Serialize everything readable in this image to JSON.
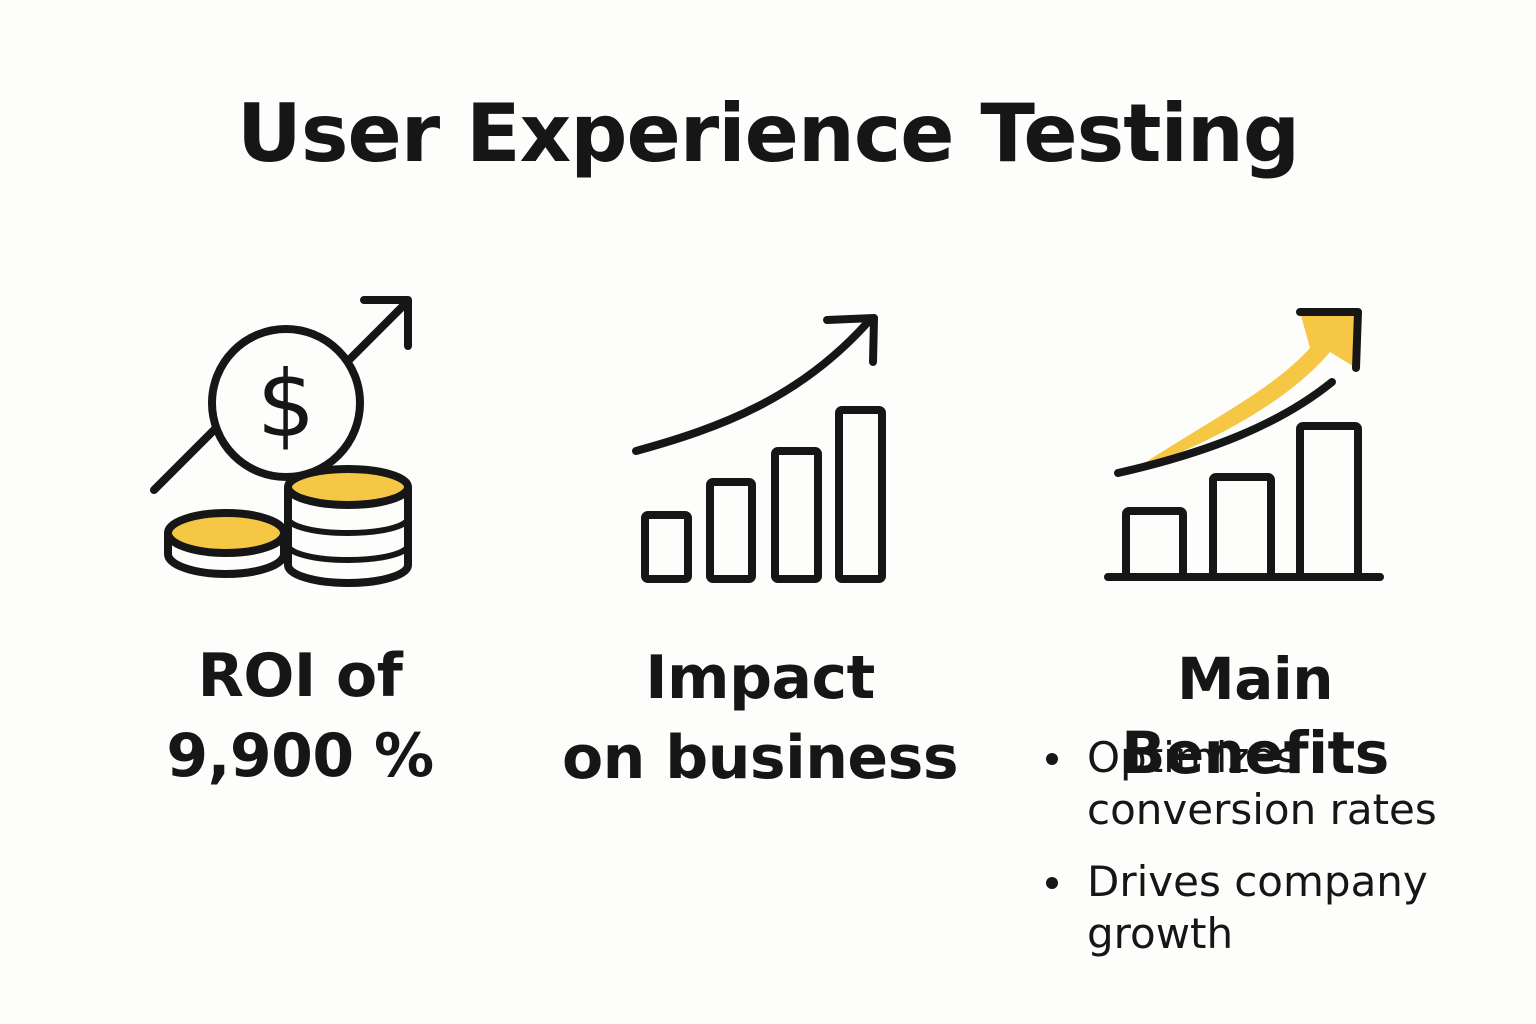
{
  "title": "User Experience Testing",
  "colors": {
    "background": "#fdfdfb",
    "ink": "#161616",
    "accent": "#f6c744"
  },
  "panels": [
    {
      "icon": "coins-with-dollar-and-up-arrow-icon",
      "lines": [
        "ROI of",
        "9,900 %"
      ]
    },
    {
      "icon": "bar-chart-growth-arrow-icon",
      "lines": [
        "Impact",
        "on business"
      ]
    },
    {
      "icon": "bar-chart-yellow-growth-arrow-icon",
      "heading": "Main Benefits",
      "bullets": [
        {
          "lines": [
            "Optimizes",
            "conversion rates"
          ]
        },
        {
          "lines": [
            "Drives company",
            "growth"
          ]
        }
      ]
    }
  ]
}
